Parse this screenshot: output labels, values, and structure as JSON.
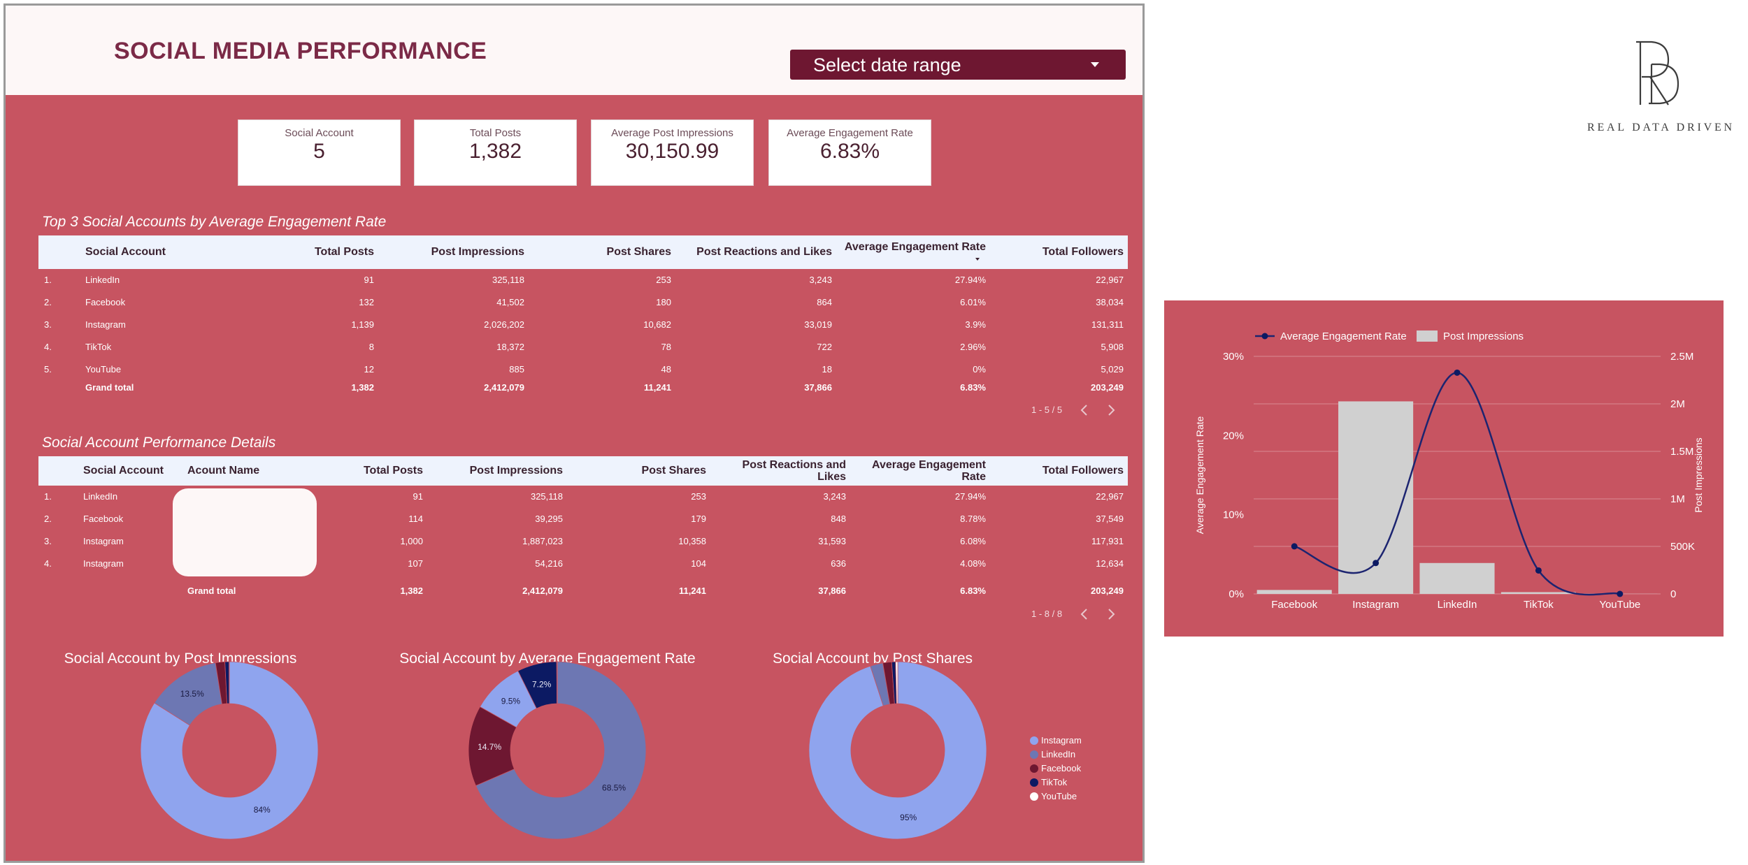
{
  "dashboard": {
    "title": "SOCIAL MEDIA PERFORMANCE",
    "date_picker_label": "Select date range"
  },
  "kpis": [
    {
      "label": "Social Account",
      "value": "5"
    },
    {
      "label": "Total Posts",
      "value": "1,382"
    },
    {
      "label": "Average Post Impressions",
      "value": "30,150.99"
    },
    {
      "label": "Average Engagement Rate",
      "value": "6.83%"
    }
  ],
  "top_table": {
    "title": "Top 3 Social Accounts by Average Engagement Rate",
    "headers": [
      "Social Account",
      "Total Posts",
      "Post Impressions",
      "Post Shares",
      "Post Reactions and Likes",
      "Average Engagement Rate",
      "Total Followers"
    ],
    "rows": [
      [
        "1.",
        "LinkedIn",
        "91",
        "325,118",
        "253",
        "3,243",
        "27.94%",
        "22,967"
      ],
      [
        "2.",
        "Facebook",
        "132",
        "41,502",
        "180",
        "864",
        "6.01%",
        "38,034"
      ],
      [
        "3.",
        "Instagram",
        "1,139",
        "2,026,202",
        "10,682",
        "33,019",
        "3.9%",
        "131,311"
      ],
      [
        "4.",
        "TikTok",
        "8",
        "18,372",
        "78",
        "722",
        "2.96%",
        "5,908"
      ],
      [
        "5.",
        "YouTube",
        "12",
        "885",
        "48",
        "18",
        "0%",
        "5,029"
      ]
    ],
    "total": [
      "Grand total",
      "1,382",
      "2,412,079",
      "11,241",
      "37,866",
      "6.83%",
      "203,249"
    ],
    "pager": "1 - 5 / 5"
  },
  "detail_table": {
    "title": "Social Account Performance Details",
    "headers": [
      "Social Account",
      "Acount Name",
      "Total Posts",
      "Post Impressions",
      "Post Shares",
      "Post Reactions and\nLikes",
      "Average Engagement\nRate",
      "Total Followers"
    ],
    "rows": [
      [
        "1.",
        "LinkedIn",
        "91",
        "325,118",
        "253",
        "3,243",
        "27.94%",
        "22,967"
      ],
      [
        "2.",
        "Facebook",
        "114",
        "39,295",
        "179",
        "848",
        "8.78%",
        "37,549"
      ],
      [
        "3.",
        "Instagram",
        "1,000",
        "1,887,023",
        "10,358",
        "31,593",
        "6.08%",
        "117,931"
      ],
      [
        "4.",
        "Instagram",
        "107",
        "54,216",
        "104",
        "636",
        "4.08%",
        "12,634"
      ]
    ],
    "total": [
      "Grand total",
      "1,382",
      "2,412,079",
      "11,241",
      "37,866",
      "6.83%",
      "203,249"
    ],
    "pager": "1 - 8 / 8"
  },
  "colors": {
    "Instagram": "#8fa4ee",
    "LinkedIn": "#6d77b3",
    "Facebook": "#6e1731",
    "TikTok": "#0c1a63",
    "YouTube": "#ffffff"
  },
  "donuts": [
    {
      "title": "Social Account by Post Impressions",
      "slices": [
        {
          "name": "Instagram",
          "value": 84.0,
          "label": "84%"
        },
        {
          "name": "LinkedIn",
          "value": 13.5,
          "label": "13.5%"
        },
        {
          "name": "Facebook",
          "value": 1.7,
          "label": ""
        },
        {
          "name": "TikTok",
          "value": 0.76,
          "label": ""
        },
        {
          "name": "YouTube",
          "value": 0.04,
          "label": ""
        }
      ]
    },
    {
      "title": "Social Account by Average Engagement Rate",
      "slices": [
        {
          "name": "LinkedIn",
          "value": 68.5,
          "label": "68.5%"
        },
        {
          "name": "Facebook",
          "value": 14.7,
          "label": "14.7%"
        },
        {
          "name": "Instagram",
          "value": 9.5,
          "label": "9.5%"
        },
        {
          "name": "TikTok",
          "value": 7.2,
          "label": "7.2%"
        },
        {
          "name": "YouTube",
          "value": 0.1,
          "label": ""
        }
      ]
    },
    {
      "title": "Social Account by Post Shares",
      "slices": [
        {
          "name": "Instagram",
          "value": 95.0,
          "label": "95%"
        },
        {
          "name": "LinkedIn",
          "value": 2.3,
          "label": ""
        },
        {
          "name": "Facebook",
          "value": 1.6,
          "label": ""
        },
        {
          "name": "TikTok",
          "value": 0.7,
          "label": ""
        },
        {
          "name": "YouTube",
          "value": 0.4,
          "label": ""
        }
      ]
    }
  ],
  "legend": [
    "Instagram",
    "LinkedIn",
    "Facebook",
    "TikTok",
    "YouTube"
  ],
  "logo": {
    "monogram": "RD",
    "tagline": "REAL DATA DRIVEN"
  },
  "chart_data": {
    "type": "bar",
    "categories": [
      "Facebook",
      "Instagram",
      "LinkedIn",
      "TikTok",
      "YouTube"
    ],
    "series": [
      {
        "name": "Post Impressions",
        "type": "bar",
        "axis": "right",
        "values": [
          41502,
          2026202,
          325118,
          18372,
          885
        ]
      },
      {
        "name": "Average Engagement Rate",
        "type": "line",
        "axis": "left",
        "values": [
          6.01,
          3.9,
          27.94,
          2.96,
          0
        ]
      }
    ],
    "ylabel": "Average Engagement Rate",
    "y2label": "Post Impressions",
    "ylim": [
      0,
      30
    ],
    "y2lim": [
      0,
      2500000
    ],
    "yticks": [
      "0%",
      "10%",
      "20%",
      "30%"
    ],
    "y2ticks": [
      "0",
      "500K",
      "1M",
      "1.5M",
      "2M",
      "2.5M"
    ],
    "legend_position": "top-left",
    "grid": true
  }
}
